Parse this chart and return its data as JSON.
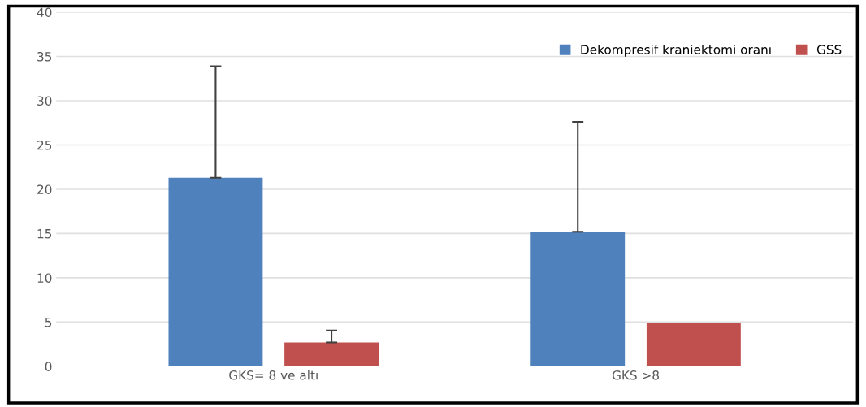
{
  "chart_data": {
    "type": "bar",
    "categories": [
      "GKS= 8 ve altı",
      "GKS >8"
    ],
    "series": [
      {
        "name": "Dekompresif kraniektomi oranı",
        "color": "#4f81bd",
        "values": [
          21.3,
          15.2
        ],
        "errors": [
          [
            21.3,
            33.9
          ],
          [
            15.2,
            27.6
          ]
        ]
      },
      {
        "name": "GSS",
        "color": "#c0504d",
        "values": [
          2.7,
          4.9
        ],
        "errors": [
          [
            2.7,
            4.05
          ],
          null
        ]
      }
    ],
    "ylim": [
      0,
      40
    ],
    "yticks": [
      0,
      5,
      10,
      15,
      20,
      25,
      30,
      35,
      40
    ],
    "grid": "y",
    "legend": "top right"
  }
}
